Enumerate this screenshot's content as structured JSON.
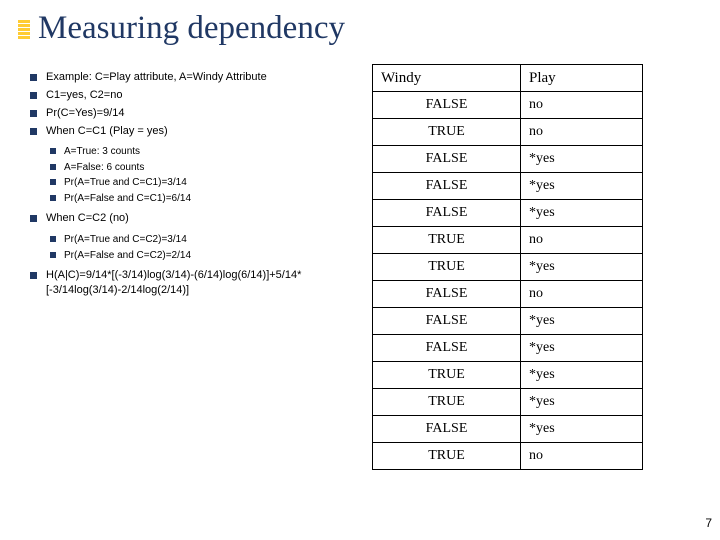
{
  "title": "Measuring dependency",
  "bullets_group1": [
    "Example: C=Play attribute, A=Windy Attribute",
    "C1=yes, C2=no",
    "Pr(C=Yes)=9/14",
    "When C=C1 (Play = yes)"
  ],
  "sub1": [
    "A=True: 3 counts",
    "A=False: 6 counts",
    "Pr(A=True and C=C1)=3/14",
    "Pr(A=False and C=C1)=6/14"
  ],
  "bullets_group2": [
    "When C=C2 (no)"
  ],
  "sub2": [
    "Pr(A=True and C=C2)=3/14",
    "Pr(A=False and C=C2)=2/14"
  ],
  "bullets_group3": [
    "H(A|C)=9/14*[(-3/14)log(3/14)-(6/14)log(6/14)]+5/14*[-3/14log(3/14)-2/14log(2/14)]"
  ],
  "table": {
    "headers": [
      "Windy",
      "Play"
    ],
    "rows": [
      [
        "FALSE",
        "no"
      ],
      [
        "TRUE",
        "no"
      ],
      [
        "FALSE",
        "*yes"
      ],
      [
        "FALSE",
        "*yes"
      ],
      [
        "FALSE",
        "*yes"
      ],
      [
        "TRUE",
        "no"
      ],
      [
        "TRUE",
        "*yes"
      ],
      [
        "FALSE",
        "no"
      ],
      [
        "FALSE",
        "*yes"
      ],
      [
        "FALSE",
        "*yes"
      ],
      [
        "TRUE",
        "*yes"
      ],
      [
        "TRUE",
        "*yes"
      ],
      [
        "FALSE",
        "*yes"
      ],
      [
        "TRUE",
        "no"
      ]
    ]
  },
  "pagenum": "7",
  "style": {
    "title_color": "#203864",
    "bullet_color": "#203864",
    "titlebar_color": "#ffcc33",
    "border_color": "#000000",
    "bg": "#ffffff"
  }
}
